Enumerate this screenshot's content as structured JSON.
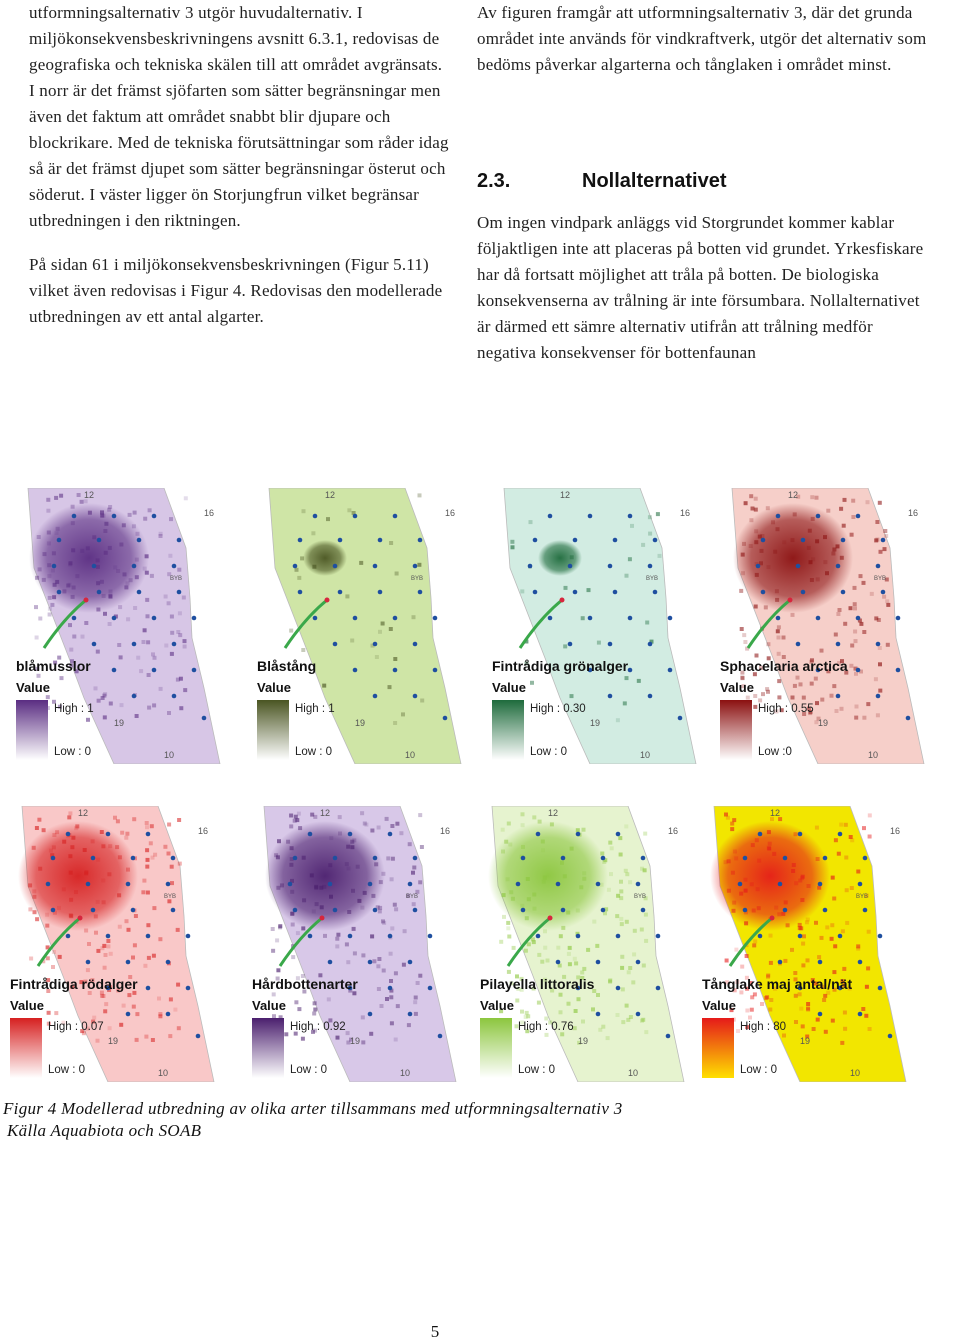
{
  "left_column": {
    "para1": "utformningsalternativ 3 utgör huvudalternativ. I miljökonsekvensbeskrivningens avsnitt 6.3.1, redovisas de geografiska och tekniska skälen till att området avgränsats. I norr är det främst sjöfarten som sätter begränsningar men även det faktum att området snabbt blir djupare och blockrikare. Med de tekniska förutsättningar som råder idag så är det främst djupet som sätter begränsningar österut och söderut. I väster ligger ön Storjungfrun vilket begränsar utbredningen i den riktningen.",
    "para2": "På sidan 61 i miljökonsekvensbeskrivningen (Figur 5.11) vilket även redovisas i Figur 4. Redovisas den modellerade utbredningen av ett antal algarter."
  },
  "right_column": {
    "para1": "Av figuren framgår att utformningsalternativ 3, där det grunda området inte används för vindkraftverk, utgör det alternativ som bedöms påverkar algarterna och tånglaken i området minst.",
    "heading_number": "2.3.",
    "heading_title": "Nollalternativet",
    "para2": "Om ingen vindpark anläggs vid Storgrundet kommer kablar följaktligen inte att placeras på botten vid grundet. Yrkesfiskare har då fortsatt möjlighet att tråla på botten. De biologiska konsekvenserna av trålning är inte försumbara. Nollalternativet är därmed ett sämre alternativ utifrån att trålning medför negativa konsekvenser för bottenfaunan"
  },
  "figure": {
    "panels": [
      {
        "title": "blåmusslor",
        "value_label": "Value",
        "high": "High : 1",
        "low": "Low : 0",
        "high_color": "#5a2d82",
        "low_color": "#ffffff",
        "fill_color": "#d7c6e6"
      },
      {
        "title": "Blåstång",
        "value_label": "Value",
        "high": "High : 1",
        "low": "Low : 0",
        "high_color": "#4a5522",
        "low_color": "#ffffff",
        "fill_color": "#cfe5a6"
      },
      {
        "title": "Fintrådiga grönalger",
        "value_label": "Value",
        "high": "High : 0.30",
        "low": "Low : 0",
        "high_color": "#1e6b3c",
        "low_color": "#ffffff",
        "fill_color": "#d2ece2"
      },
      {
        "title": "Sphacelaria arctica",
        "value_label": "Value",
        "high": "High : 0.55",
        "low": "Low :0",
        "high_color": "#8b1010",
        "low_color": "#ffffff",
        "fill_color": "#f6cfc9"
      },
      {
        "title": "Fintrådiga rödalger",
        "value_label": "Value",
        "high": "High : 0.07",
        "low": "Low : 0",
        "high_color": "#d62020",
        "low_color": "#ffffff",
        "fill_color": "#f9c8c8"
      },
      {
        "title": "Hårdbottenarter",
        "value_label": "Value",
        "high": "High : 0.92",
        "low": "Low : 0",
        "high_color": "#4b1f6e",
        "low_color": "#ffffff",
        "fill_color": "#d8c8e8"
      },
      {
        "title": "Pilayella littoralis",
        "value_label": "Value",
        "high": "High : 0.76",
        "low": "Low : 0",
        "high_color": "#8cc63e",
        "low_color": "#ffffff",
        "fill_color": "#e6f3cf"
      },
      {
        "title": "Tånglake maj antal/nät",
        "value_label": "Value",
        "high": "High : 80",
        "low": "Low : 0",
        "high_color": "#e51a1a",
        "low_color": "#ffe000",
        "fill_color": "#f2e600"
      }
    ],
    "map_labels": {
      "depth_12": "12",
      "depth_16": "16",
      "depth_19": "19",
      "depth_10": "10",
      "mark_byb": "BYB"
    },
    "caption_line1": "Figur 4 Modellerad utbredning av olika arter tillsammans med utformningsalternativ 3",
    "caption_line2": "Källa Aquabiota och SOAB"
  },
  "page_number": "5",
  "colors": {
    "turbine_dots": "#1f4fa0",
    "cable_line": "#3aa84a",
    "cable_tip": "#d7263d"
  }
}
